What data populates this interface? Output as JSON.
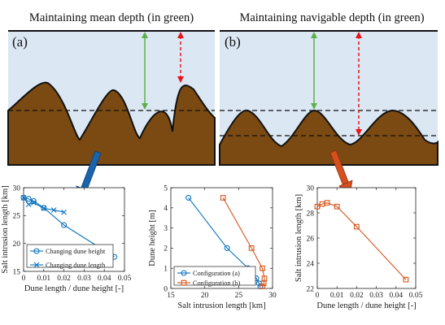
{
  "panels": [
    {
      "title": "Maintaining mean depth (in green)",
      "label": "(a)"
    },
    {
      "title": "Maintaining navigable depth (in green)",
      "label": "(b)"
    }
  ],
  "colors": {
    "water": "#dbe7f3",
    "sediment": "#7a4a12",
    "green_arrow": "#5fb04a",
    "red_arrow": "#e8141a",
    "blue": "#0a72bd",
    "orange": "#d95319",
    "blue_callout": "#1a63ad",
    "orange_callout": "#d6501e"
  },
  "chart_data": [
    {
      "type": "line",
      "xlabel": "Dune length / dune height [-]",
      "ylabel": "Salt intrusion length [km]",
      "xlim": [
        0,
        0.05
      ],
      "ylim": [
        15,
        30
      ],
      "xticks": [
        0,
        0.01,
        0.02,
        0.03,
        0.04,
        0.05
      ],
      "xtick_labels": [
        "0",
        "0.01",
        "0.02",
        "0.03",
        "0.04",
        "0.05"
      ],
      "yticks": [
        15,
        20,
        25,
        30
      ],
      "ytick_labels": [
        "15",
        "20",
        "25",
        "30"
      ],
      "legend_position": "bottom-left",
      "series": [
        {
          "name": "Changing dune height",
          "marker": "circle",
          "color": "#0a72bd",
          "x": [
            0,
            0.0025,
            0.005,
            0.01,
            0.02,
            0.045
          ],
          "y": [
            28.2,
            28.0,
            27.6,
            26.4,
            23.3,
            17.6
          ]
        },
        {
          "name": "Changing dune length",
          "marker": "x",
          "color": "#0a72bd",
          "x": [
            0,
            0.0025,
            0.005,
            0.01,
            0.015,
            0.02
          ],
          "y": [
            28.2,
            27.0,
            27.3,
            26.3,
            26.0,
            25.6
          ]
        }
      ]
    },
    {
      "type": "line",
      "xlabel": "Salt intrusion length [km]",
      "ylabel": "Dune height [m]",
      "xlim": [
        15,
        30
      ],
      "ylim": [
        0,
        5
      ],
      "xticks": [
        15,
        20,
        25,
        30
      ],
      "xtick_labels": [
        "15",
        "20",
        "25",
        "30"
      ],
      "yticks": [
        0,
        1,
        2,
        3,
        4,
        5
      ],
      "ytick_labels": [
        "0",
        "1",
        "2",
        "3",
        "4",
        "5"
      ],
      "legend_position": "bottom-left",
      "series": [
        {
          "name": "Configuration (a)",
          "marker": "circle",
          "color": "#0a72bd",
          "x": [
            17.6,
            23.3,
            26.4,
            27.6,
            28.0,
            28.2
          ],
          "y": [
            4.5,
            2.0,
            1.0,
            0.5,
            0.25,
            0.1
          ]
        },
        {
          "name": "Configuration (b)",
          "marker": "square",
          "color": "#d95319",
          "x": [
            22.7,
            26.9,
            28.5,
            28.8,
            28.7,
            28.5
          ],
          "y": [
            4.5,
            2.0,
            1.0,
            0.5,
            0.25,
            0.1
          ]
        }
      ]
    },
    {
      "type": "line",
      "xlabel": "Dune length / dune height [-]",
      "ylabel": "Salt intrusion length [km]",
      "xlim": [
        0,
        0.05
      ],
      "ylim": [
        22,
        30
      ],
      "xticks": [
        0,
        0.01,
        0.02,
        0.03,
        0.04,
        0.05
      ],
      "xtick_labels": [
        "0",
        "0.01",
        "0.02",
        "0.03",
        "0.04",
        "0.05"
      ],
      "yticks": [
        22,
        24,
        26,
        28,
        30
      ],
      "ytick_labels": [
        "22",
        "24",
        "26",
        "28",
        "30"
      ],
      "series": [
        {
          "marker": "square",
          "color": "#d95319",
          "x": [
            0,
            0.0025,
            0.005,
            0.01,
            0.02,
            0.045
          ],
          "y": [
            28.5,
            28.7,
            28.8,
            28.5,
            26.9,
            22.7
          ]
        }
      ]
    }
  ]
}
